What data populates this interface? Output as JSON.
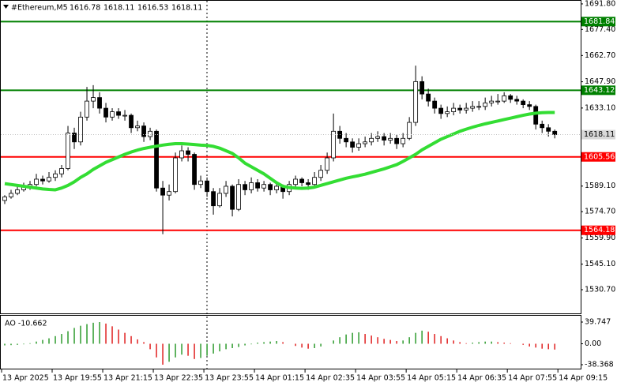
{
  "chart_data": [
    {
      "type": "candlestick",
      "title": "#Ethereum,M5",
      "quote": [
        1616.78,
        1618.11,
        1616.53,
        1618.11
      ],
      "open": [
        1581,
        1583,
        1585,
        1587,
        1589,
        1590,
        1593,
        1592,
        1594,
        1596,
        1599,
        1619,
        1614,
        1628,
        1637,
        1639,
        1633,
        1628,
        1631,
        1629,
        1629,
        1622,
        1623,
        1617,
        1620,
        1588,
        1584,
        1586,
        1605,
        1609,
        1607,
        1590,
        1592,
        1586,
        1578,
        1585,
        1589,
        1576,
        1590,
        1587,
        1591,
        1588,
        1590,
        1587,
        1589,
        1586,
        1590,
        1593,
        1591,
        1590,
        1594,
        1598,
        1605,
        1620,
        1616,
        1614,
        1611,
        1613,
        1614,
        1616,
        1617,
        1615,
        1616,
        1613,
        1616,
        1625,
        1648,
        1641,
        1637,
        1633,
        1630,
        1631,
        1633,
        1632,
        1633,
        1634,
        1634,
        1636,
        1637,
        1637,
        1640,
        1638,
        1637,
        1635,
        1634,
        1624,
        1622,
        1620
      ],
      "high": [
        1584,
        1587,
        1589,
        1591,
        1592,
        1596,
        1595,
        1597,
        1598,
        1601,
        1623,
        1622,
        1631,
        1645,
        1646,
        1642,
        1636,
        1633,
        1633,
        1632,
        1630,
        1626,
        1625,
        1622,
        1621,
        1592,
        1590,
        1608,
        1612,
        1611,
        1608,
        1595,
        1594,
        1588,
        1588,
        1592,
        1590,
        1593,
        1592,
        1594,
        1593,
        1592,
        1591,
        1591,
        1590,
        1592,
        1595,
        1594,
        1593,
        1597,
        1601,
        1608,
        1630,
        1623,
        1619,
        1616,
        1616,
        1617,
        1619,
        1620,
        1619,
        1619,
        1618,
        1619,
        1628,
        1657,
        1651,
        1644,
        1639,
        1635,
        1634,
        1636,
        1635,
        1636,
        1637,
        1637,
        1639,
        1640,
        1641,
        1642,
        1641,
        1640,
        1638,
        1637,
        1635,
        1626,
        1624,
        1621
      ],
      "low": [
        1579,
        1582,
        1584,
        1586,
        1587,
        1589,
        1590,
        1591,
        1592,
        1594,
        1598,
        1610,
        1612,
        1626,
        1633,
        1630,
        1625,
        1626,
        1627,
        1626,
        1619,
        1620,
        1614,
        1615,
        1586,
        1562,
        1581,
        1585,
        1603,
        1603,
        1587,
        1588,
        1583,
        1573,
        1577,
        1583,
        1572,
        1575,
        1584,
        1585,
        1586,
        1586,
        1584,
        1585,
        1582,
        1584,
        1588,
        1589,
        1587,
        1589,
        1592,
        1596,
        1603,
        1613,
        1611,
        1608,
        1609,
        1611,
        1612,
        1614,
        1612,
        1613,
        1610,
        1611,
        1615,
        1623,
        1638,
        1634,
        1630,
        1627,
        1628,
        1629,
        1630,
        1630,
        1631,
        1632,
        1632,
        1634,
        1635,
        1636,
        1636,
        1635,
        1633,
        1632,
        1621,
        1619,
        1617,
        1616
      ],
      "close": [
        1583,
        1585,
        1587,
        1589,
        1590,
        1593,
        1592,
        1594,
        1596,
        1599,
        1619,
        1614,
        1628,
        1637,
        1639,
        1633,
        1628,
        1631,
        1629,
        1629,
        1622,
        1623,
        1617,
        1620,
        1588,
        1584,
        1586,
        1605,
        1609,
        1607,
        1590,
        1592,
        1586,
        1578,
        1585,
        1589,
        1576,
        1590,
        1587,
        1591,
        1588,
        1590,
        1587,
        1589,
        1586,
        1590,
        1593,
        1591,
        1590,
        1594,
        1598,
        1605,
        1620,
        1616,
        1614,
        1611,
        1613,
        1614,
        1616,
        1617,
        1615,
        1616,
        1613,
        1616,
        1625,
        1648,
        1641,
        1637,
        1633,
        1630,
        1631,
        1633,
        1632,
        1633,
        1634,
        1634,
        1636,
        1637,
        1637,
        1640,
        1638,
        1637,
        1635,
        1634,
        1624,
        1622,
        1620,
        1618.11
      ],
      "series": [
        {
          "color": "#33dd33",
          "values": [
            1590.5,
            1590,
            1589.5,
            1589,
            1588.5,
            1588,
            1587.5,
            1587.2,
            1587,
            1588,
            1589.5,
            1591.5,
            1594,
            1596,
            1598.5,
            1600.5,
            1602.5,
            1604,
            1605.5,
            1607,
            1608.3,
            1609.4,
            1610.3,
            1611,
            1611.6,
            1612.2,
            1612.7,
            1613,
            1613,
            1612.8,
            1612.5,
            1612.2,
            1612,
            1611.5,
            1610.5,
            1609,
            1607.5,
            1605,
            1602,
            1600,
            1598,
            1596,
            1593.5,
            1591,
            1589,
            1588.3,
            1588,
            1587.8,
            1588,
            1588.5,
            1589.5,
            1590.5,
            1591.5,
            1592.5,
            1593.5,
            1594.3,
            1595,
            1595.8,
            1596.8,
            1597.8,
            1598.8,
            1600,
            1601.2,
            1603,
            1605,
            1607,
            1609.5,
            1611.5,
            1613.5,
            1615.5,
            1617,
            1618.5,
            1620,
            1621.2,
            1622.3,
            1623.3,
            1624.2,
            1625,
            1625.8,
            1626.6,
            1627.4,
            1628.2,
            1629,
            1629.7,
            1630.2,
            1630.5,
            1630.6,
            1630.6
          ]
        }
      ],
      "levels": [
        {
          "value": 1681.84,
          "color": "#008000"
        },
        {
          "value": 1643.12,
          "color": "#008000"
        },
        {
          "value": 1605.56,
          "color": "#ff0000"
        },
        {
          "value": 1564.18,
          "color": "#ff0000"
        }
      ],
      "ylim": [
        1516.9,
        1694.0
      ],
      "yticks": [
        {
          "value": 1691.8,
          "label": "1691.80"
        },
        {
          "value": 1677.4,
          "label": "1677.40"
        },
        {
          "value": 1662.7,
          "label": "1662.70"
        },
        {
          "value": 1647.9,
          "label": "1647.90"
        },
        {
          "value": 1633.1,
          "label": "1633.10"
        },
        {
          "value": 1589.1,
          "label": "1589.10"
        },
        {
          "value": 1574.7,
          "label": "1574.70"
        },
        {
          "value": 1559.9,
          "label": "1559.90"
        },
        {
          "value": 1545.1,
          "label": "1545.10"
        },
        {
          "value": 1530.7,
          "label": "1530.70"
        }
      ],
      "xlim": [
        0,
        91.6
      ],
      "xticks": [
        {
          "value": 0,
          "label": "13 Apr 2025"
        },
        {
          "value": 8,
          "label": "13 Apr 19:55"
        },
        {
          "value": 16,
          "label": "13 Apr 21:15"
        },
        {
          "value": 24,
          "label": "13 Apr 22:35"
        },
        {
          "value": 32,
          "label": "13 Apr 23:55"
        },
        {
          "value": 40,
          "label": "14 Apr 01:15"
        },
        {
          "value": 48,
          "label": "14 Apr 02:35"
        },
        {
          "value": 56,
          "label": "14 Apr 03:55"
        },
        {
          "value": 64,
          "label": "14 Apr 05:15"
        },
        {
          "value": 72,
          "label": "14 Apr 06:35"
        },
        {
          "value": 80,
          "label": "14 Apr 07:55"
        },
        {
          "value": 88,
          "label": "14 Apr 09:15"
        }
      ]
    },
    {
      "type": "ao",
      "title": "AO -10.662",
      "up_color": "#2e9b2e",
      "down_color": "#e02020",
      "values": [
        -3,
        -2.5,
        -2,
        -1,
        1,
        4,
        7,
        10,
        14,
        18,
        23,
        29,
        33,
        36,
        38.5,
        39.747,
        37,
        32,
        26,
        20,
        14,
        8,
        3,
        -10,
        -25,
        -38.368,
        -33,
        -25,
        -20,
        -22,
        -28,
        -26,
        -22,
        -18,
        -14,
        -10,
        -8,
        -6,
        -3,
        -1,
        2,
        3,
        4,
        5,
        3,
        0,
        -4,
        -7,
        -9,
        -8,
        -5,
        0,
        6,
        12,
        17,
        20,
        21,
        18,
        15,
        12,
        9,
        7,
        5,
        6,
        12,
        20,
        24,
        22,
        18,
        14,
        10,
        6,
        3,
        1,
        2,
        3,
        4,
        4,
        3,
        2,
        1,
        0,
        -2,
        -5,
        -7,
        -9,
        -10,
        -10.662
      ],
      "ylim": [
        -47.05,
        51.32
      ],
      "yticks": [
        39.747,
        {
          "value": 0,
          "label": "0.00"
        },
        -38.368
      ]
    }
  ]
}
